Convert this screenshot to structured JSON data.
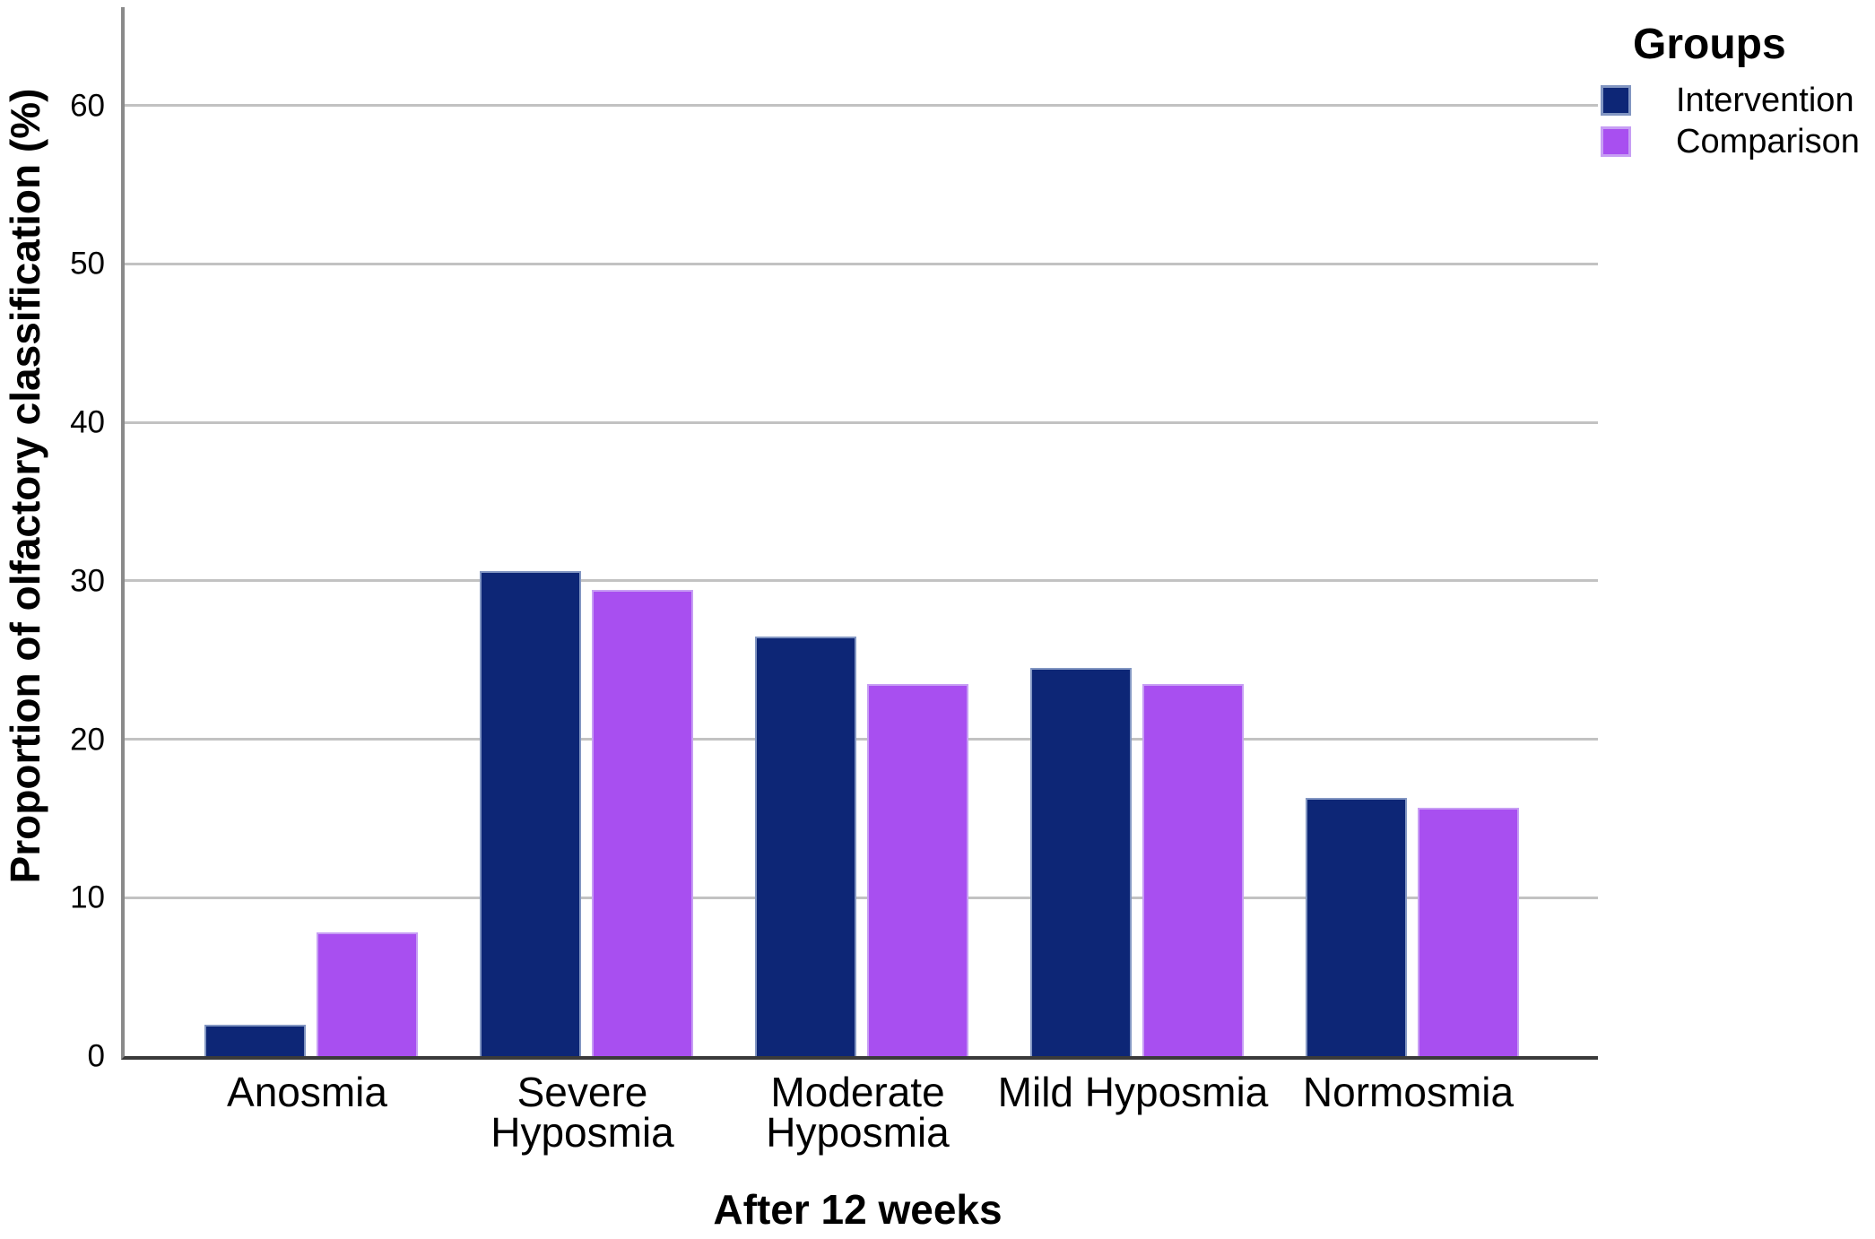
{
  "chart_data": {
    "type": "bar",
    "title": "",
    "categories": [
      "Anosmia",
      "Severe Hyposmia",
      "Moderate Hyposmia",
      "Mild Hyposmia",
      "Normosmia"
    ],
    "series": [
      {
        "name": "Intervention",
        "color": "#0d2676",
        "border_color": "#8296c2",
        "values": [
          2.0,
          30.6,
          26.5,
          24.5,
          16.3
        ]
      },
      {
        "name": "Comparison",
        "color": "#a84ff0",
        "border_color": "#c79ef4",
        "values": [
          7.8,
          29.4,
          23.5,
          23.5,
          15.7
        ]
      }
    ],
    "xlabel": "After 12 weeks",
    "ylabel": "Proportion of olfactory classification (%)",
    "yticks": [
      0,
      10,
      20,
      30,
      40,
      50,
      60
    ],
    "ylim": [
      0,
      66.2
    ],
    "grid": true,
    "legend": {
      "title": "Groups",
      "position": "top-right"
    }
  },
  "colors": {
    "background": "#ffffff",
    "text": "#000000",
    "gridline": "#c2c2c2",
    "y_axis": "#8a8a8a",
    "x_axis": "#3a3a3a"
  }
}
